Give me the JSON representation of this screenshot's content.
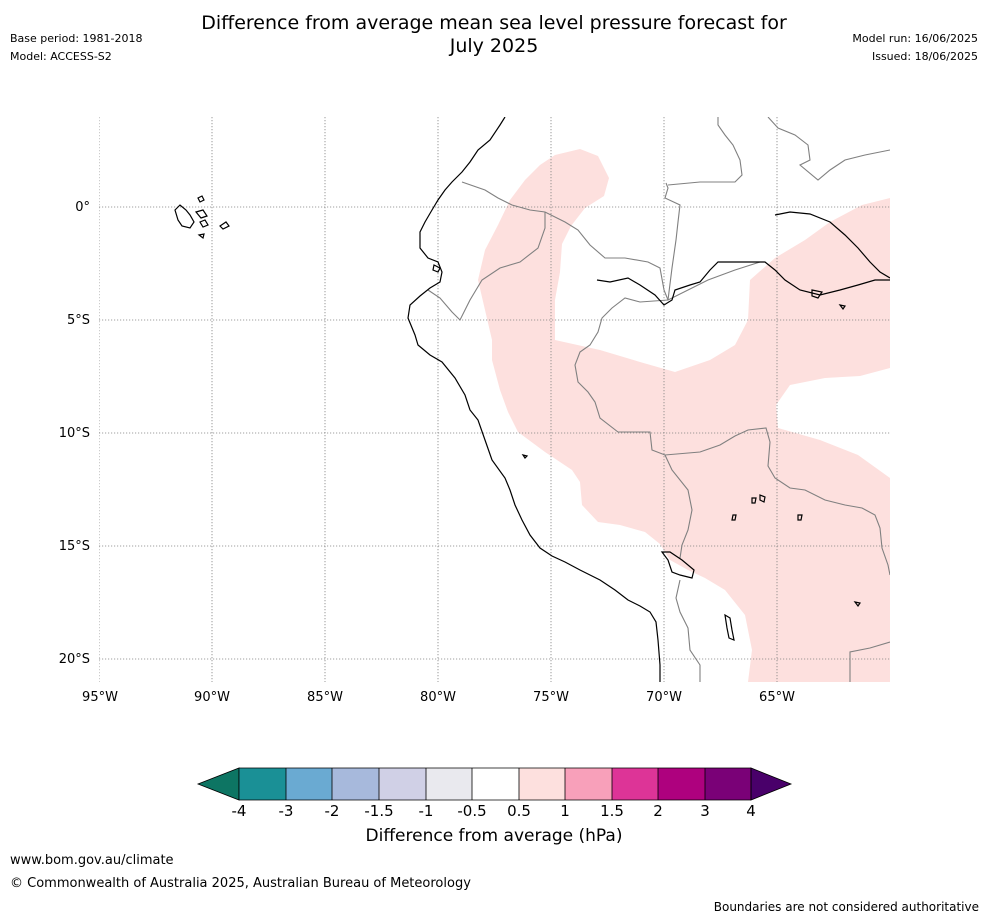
{
  "header": {
    "title_line1": "Difference from average mean sea level pressure forecast for",
    "title_line2": "July 2025",
    "base_period": "Base period: 1981-2018",
    "model": "Model: ACCESS-S2",
    "model_run": "Model run: 16/06/2025",
    "issued": "Issued: 18/06/2025"
  },
  "map": {
    "lat_labels": [
      "0°",
      "5°S",
      "10°S",
      "15°S",
      "20°S"
    ],
    "lon_labels": [
      "95°W",
      "90°W",
      "85°W",
      "80°W",
      "75°W",
      "70°W",
      "65°W"
    ],
    "anomaly_region_color": "#fde0de",
    "anomaly_category": "0.5 to 1 hPa above average",
    "coastline_color": "#000000",
    "border_color": "#808080"
  },
  "colorbar": {
    "title": "Difference from average (hPa)",
    "tick_labels": [
      "-4",
      "-3",
      "-2",
      "-1.5",
      "-1",
      "-0.5",
      "0.5",
      "1",
      "1.5",
      "2",
      "3",
      "4"
    ],
    "colors": [
      "#0d7563",
      "#1a9096",
      "#6aaad2",
      "#a7b9dc",
      "#d0d0e6",
      "#e9e9ee",
      "#ffffff",
      "#fde0de",
      "#f8a0ba",
      "#dd3497",
      "#ae017e",
      "#7a0177",
      "#49006a"
    ]
  },
  "footer": {
    "url": "www.bom.gov.au/climate",
    "copyright": "© Commonwealth of Australia 2025, Australian Bureau of Meteorology",
    "note": "Boundaries are not considered authoritative"
  }
}
